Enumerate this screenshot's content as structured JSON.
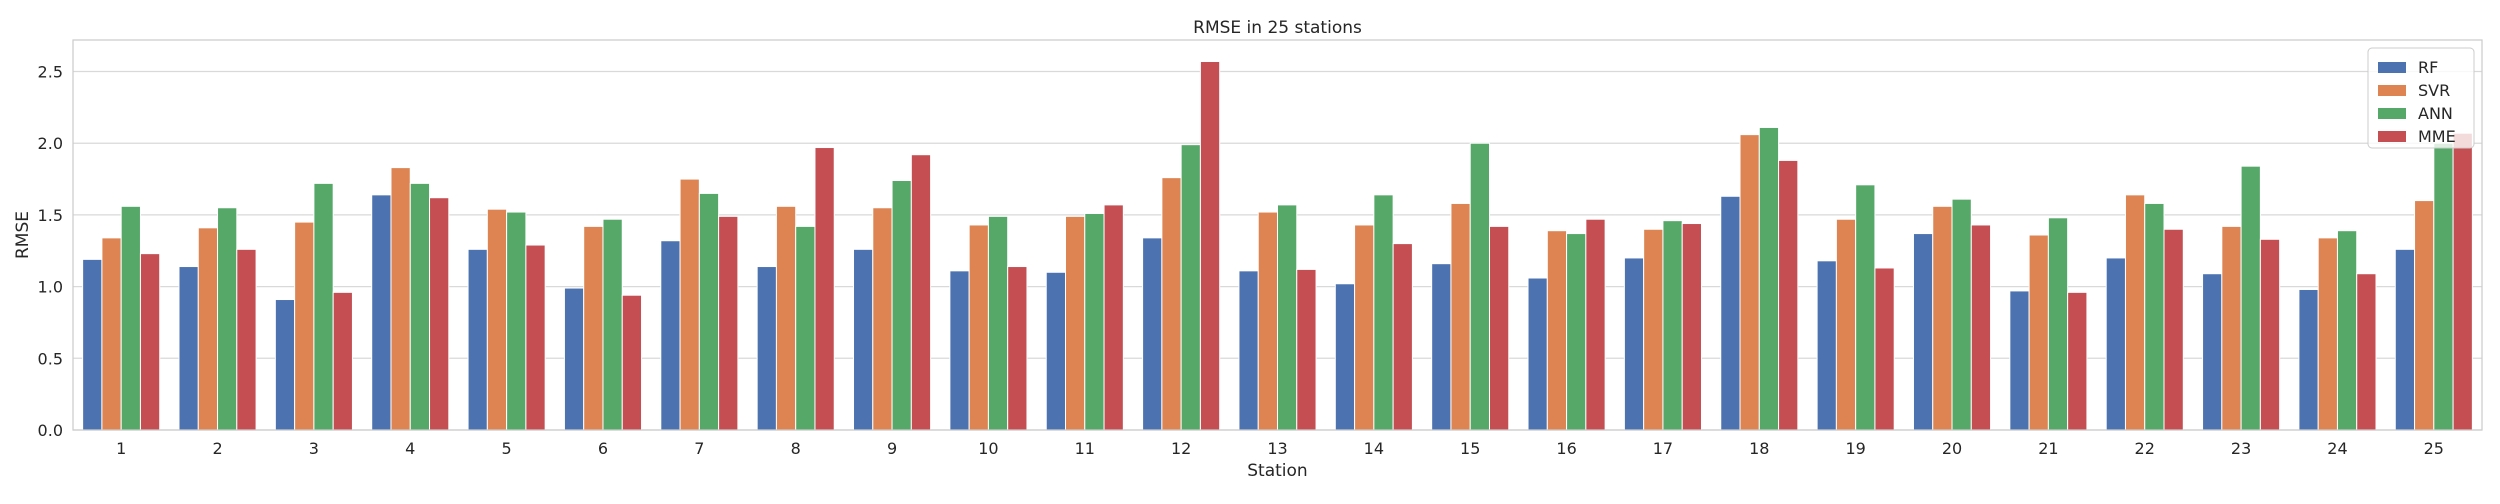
{
  "chart_data": {
    "type": "bar",
    "title": "RMSE in 25 stations",
    "xlabel": "Station",
    "ylabel": "RMSE",
    "ylim": [
      0,
      2.72
    ],
    "yticks": [
      0.0,
      0.5,
      1.0,
      1.5,
      2.0,
      2.5
    ],
    "ytick_labels": [
      "0.0",
      "0.5",
      "1.0",
      "1.5",
      "2.0",
      "2.5"
    ],
    "grid": "y",
    "legend_position": "top-right",
    "categories": [
      "1",
      "2",
      "3",
      "4",
      "5",
      "6",
      "7",
      "8",
      "9",
      "10",
      "11",
      "12",
      "13",
      "14",
      "15",
      "16",
      "17",
      "18",
      "19",
      "20",
      "21",
      "22",
      "23",
      "24",
      "25"
    ],
    "series": [
      {
        "name": "RF",
        "color": "#4c72b0",
        "values": [
          1.19,
          1.14,
          0.91,
          1.64,
          1.26,
          0.99,
          1.32,
          1.14,
          1.26,
          1.11,
          1.1,
          1.34,
          1.11,
          1.02,
          1.16,
          1.06,
          1.2,
          1.63,
          1.18,
          1.37,
          0.97,
          1.2,
          1.09,
          0.98,
          1.26
        ]
      },
      {
        "name": "SVR",
        "color": "#dd8452",
        "values": [
          1.34,
          1.41,
          1.45,
          1.83,
          1.54,
          1.42,
          1.75,
          1.56,
          1.55,
          1.43,
          1.49,
          1.76,
          1.52,
          1.43,
          1.58,
          1.39,
          1.4,
          2.06,
          1.47,
          1.56,
          1.36,
          1.64,
          1.42,
          1.34,
          1.6
        ]
      },
      {
        "name": "ANN",
        "color": "#55a868",
        "values": [
          1.56,
          1.55,
          1.72,
          1.72,
          1.52,
          1.47,
          1.65,
          1.42,
          1.74,
          1.49,
          1.51,
          1.99,
          1.57,
          1.64,
          2.0,
          1.37,
          1.46,
          2.11,
          1.71,
          1.61,
          1.48,
          1.58,
          1.84,
          1.39,
          2.0
        ]
      },
      {
        "name": "MME",
        "color": "#c44e52",
        "values": [
          1.23,
          1.26,
          0.96,
          1.62,
          1.29,
          0.94,
          1.49,
          1.97,
          1.92,
          1.14,
          1.57,
          2.57,
          1.12,
          1.3,
          1.42,
          1.47,
          1.44,
          1.88,
          1.13,
          1.43,
          0.96,
          1.4,
          1.33,
          1.09,
          2.07
        ]
      }
    ]
  }
}
